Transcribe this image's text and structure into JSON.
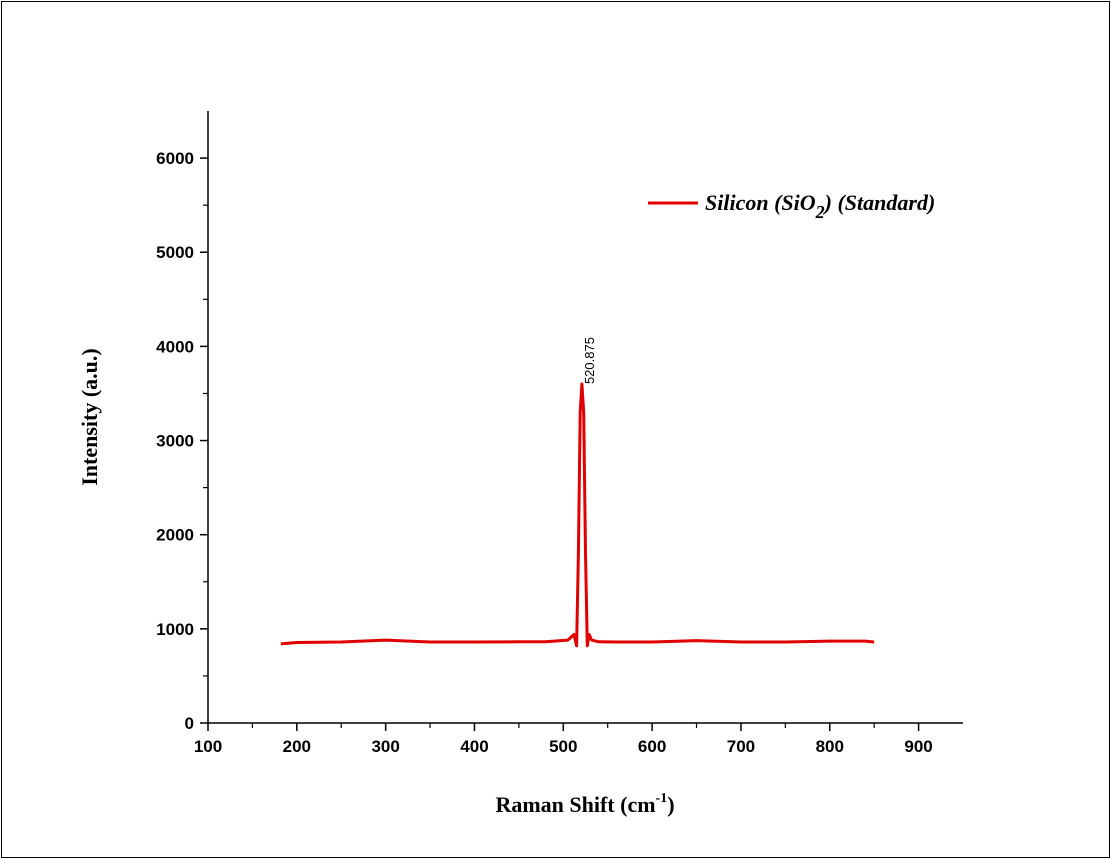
{
  "chart_data": {
    "type": "line",
    "xlabel": "Raman Shift (cm",
    "xlabel_sup": "-1",
    "xlabel_tail": ")",
    "ylabel": "Intensity (a.u.)",
    "xlim": [
      100,
      950
    ],
    "ylim": [
      0,
      6500
    ],
    "x_ticks": [
      100,
      200,
      300,
      400,
      500,
      600,
      700,
      800,
      900
    ],
    "y_ticks": [
      0,
      1000,
      2000,
      3000,
      4000,
      5000,
      6000
    ],
    "grid": false,
    "legend_position": "top-right",
    "colors": {
      "series": "#e00000"
    },
    "series": [
      {
        "name_main": "Silicon (SiO",
        "name_sub": "2",
        "name_tail": ") (Standard)",
        "x": [
          182,
          200,
          250,
          300,
          350,
          400,
          450,
          480,
          505,
          512,
          515,
          517,
          519,
          521,
          523,
          525,
          527,
          529,
          532,
          540,
          560,
          600,
          650,
          700,
          750,
          800,
          840,
          850
        ],
        "y": [
          840,
          855,
          860,
          880,
          860,
          860,
          862,
          862,
          880,
          940,
          820,
          1800,
          3300,
          3600,
          3300,
          1800,
          820,
          940,
          880,
          862,
          860,
          860,
          875,
          860,
          860,
          870,
          870,
          860
        ]
      }
    ],
    "annotations": [
      {
        "text": "520.875",
        "x": 520.875,
        "y": 3600
      }
    ]
  }
}
